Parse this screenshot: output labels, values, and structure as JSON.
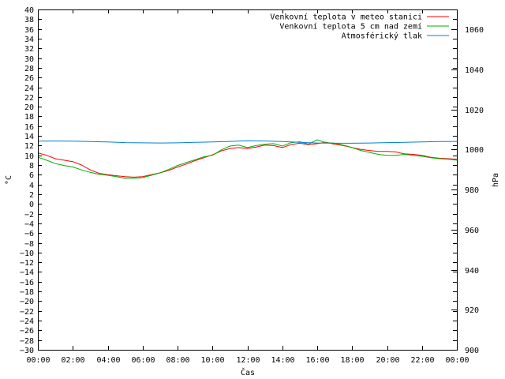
{
  "chart_data": {
    "type": "line",
    "xlabel": "Čas",
    "ylabel_left": "°C",
    "ylabel_right": "hPa",
    "x_ticks": [
      "00:00",
      "02:00",
      "04:00",
      "06:00",
      "08:00",
      "10:00",
      "12:00",
      "14:00",
      "16:00",
      "18:00",
      "20:00",
      "22:00",
      "00:00"
    ],
    "x_range_hours": [
      0,
      24
    ],
    "ylim_left": [
      -30,
      40
    ],
    "ylim_right": [
      900,
      1070
    ],
    "left_tick_step": 2,
    "right_ticks": [
      900,
      920,
      940,
      960,
      980,
      1000,
      1020,
      1040,
      1060
    ],
    "legend_position": "top-right",
    "series": [
      {
        "name": "Venkovní teplota v meteo stanici",
        "color": "#ff0000",
        "axis": "left",
        "x": [
          0,
          0.5,
          1,
          1.5,
          2,
          2.5,
          3,
          3.5,
          4,
          4.5,
          5,
          5.5,
          6,
          6.5,
          7,
          7.5,
          8,
          8.5,
          9,
          9.5,
          10,
          10.5,
          11,
          11.5,
          12,
          12.5,
          13,
          13.5,
          14,
          14.5,
          15,
          15.5,
          16,
          16.5,
          17,
          17.5,
          18,
          18.5,
          19,
          19.5,
          20,
          20.5,
          21,
          21.5,
          22,
          22.5,
          23,
          23.5,
          24
        ],
        "values": [
          10.5,
          10.0,
          9.3,
          9.0,
          8.7,
          8.0,
          7.0,
          6.3,
          6.0,
          5.8,
          5.6,
          5.5,
          5.6,
          6.0,
          6.4,
          6.9,
          7.6,
          8.2,
          8.9,
          9.5,
          10.1,
          10.9,
          11.4,
          11.6,
          11.4,
          11.7,
          12.1,
          12.0,
          11.6,
          12.2,
          12.5,
          12.2,
          12.4,
          12.7,
          12.3,
          12.0,
          11.6,
          11.2,
          11.0,
          10.8,
          10.8,
          10.7,
          10.3,
          10.2,
          10.0,
          9.6,
          9.4,
          9.3,
          9.2
        ]
      },
      {
        "name": "Venkovní teplota 5 cm nad zemí",
        "color": "#00b000",
        "axis": "left",
        "x": [
          0,
          0.5,
          1,
          1.5,
          2,
          2.5,
          3,
          3.5,
          4,
          4.5,
          5,
          5.5,
          6,
          6.5,
          7,
          7.5,
          8,
          8.5,
          9,
          9.5,
          10,
          10.5,
          11,
          11.5,
          12,
          12.5,
          13,
          13.5,
          14,
          14.5,
          15,
          15.5,
          16,
          16.5,
          17,
          17.5,
          18,
          18.5,
          19,
          19.5,
          20,
          20.5,
          21,
          21.5,
          22,
          22.5,
          23,
          23.5,
          24
        ],
        "values": [
          9.6,
          9.0,
          8.3,
          7.9,
          7.6,
          7.0,
          6.5,
          6.1,
          5.9,
          5.6,
          5.3,
          5.3,
          5.4,
          5.9,
          6.4,
          7.1,
          7.9,
          8.5,
          9.1,
          9.7,
          10.0,
          11.1,
          11.9,
          12.1,
          11.6,
          12.0,
          12.3,
          12.4,
          11.9,
          12.6,
          12.8,
          12.3,
          13.2,
          12.6,
          12.5,
          12.1,
          11.6,
          11.0,
          10.6,
          10.2,
          10.0,
          10.0,
          10.2,
          10.0,
          9.8,
          9.5,
          9.3,
          9.2,
          9.0
        ]
      },
      {
        "name": "Atmosférický tlak",
        "color": "#0080d0",
        "axis": "right",
        "x": [
          0,
          1,
          2,
          3,
          4,
          5,
          6,
          7,
          8,
          9,
          10,
          11,
          12,
          13,
          14,
          15,
          16,
          17,
          18,
          19,
          20,
          21,
          22,
          23,
          24
        ],
        "values": [
          1004.2,
          1004.3,
          1004.2,
          1004.0,
          1003.8,
          1003.5,
          1003.4,
          1003.3,
          1003.4,
          1003.6,
          1003.8,
          1004.1,
          1004.4,
          1004.3,
          1004.0,
          1003.6,
          1003.3,
          1003.2,
          1003.2,
          1003.3,
          1003.5,
          1003.6,
          1003.8,
          1004.0,
          1004.1
        ]
      }
    ]
  }
}
